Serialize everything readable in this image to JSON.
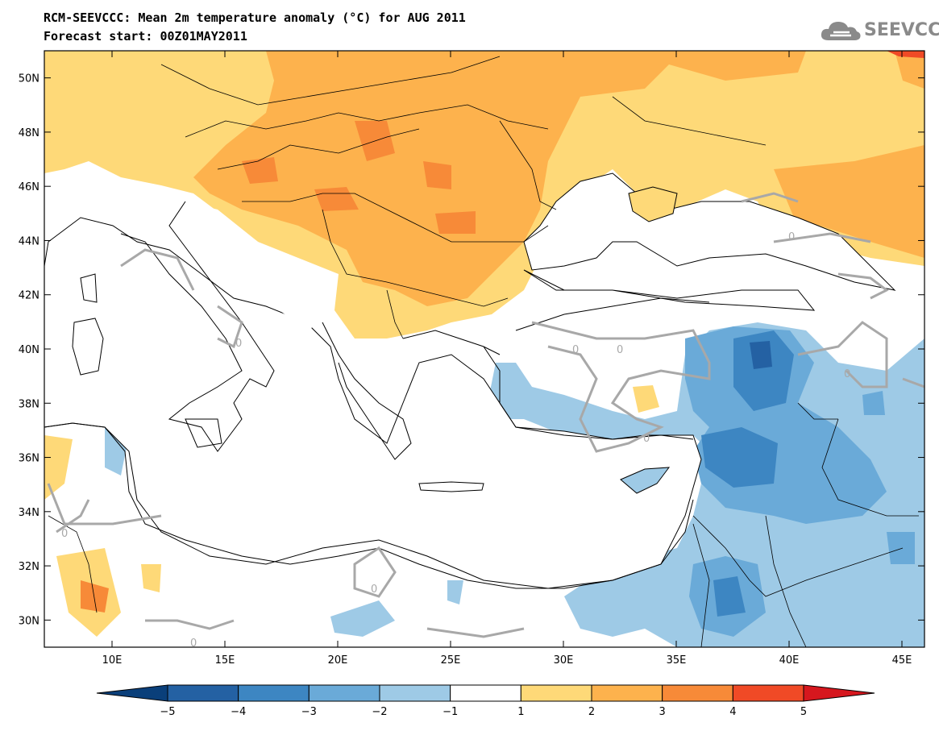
{
  "header": {
    "title": "RCM-SEEVCCC: Mean 2m temperature anomaly (°C) for AUG 2011",
    "subtitle": "Forecast start: 00Z01MAY2011"
  },
  "logo": {
    "text": "SEEVCCC",
    "icon": "cloud-icon",
    "color": "#8a8a8a"
  },
  "map": {
    "lon_range": [
      7,
      46
    ],
    "lat_range": [
      29,
      51
    ],
    "lon_ticks": [
      "10E",
      "15E",
      "20E",
      "25E",
      "30E",
      "35E",
      "40E",
      "45E"
    ],
    "lat_ticks": [
      "30N",
      "32N",
      "34N",
      "36N",
      "38N",
      "40N",
      "42N",
      "44N",
      "46N",
      "48N",
      "50N"
    ],
    "contour_label": "0"
  },
  "colorbar": {
    "labels": [
      "−5",
      "−4",
      "−3",
      "−2",
      "−1",
      "1",
      "2",
      "3",
      "4",
      "5"
    ],
    "colors": [
      "#0a3f7a",
      "#2461a3",
      "#3d86c2",
      "#6aaad8",
      "#9ecae6",
      "#ffffff",
      "#fed978",
      "#fdb24d",
      "#f78a38",
      "#f04a26",
      "#d6171e"
    ]
  }
}
